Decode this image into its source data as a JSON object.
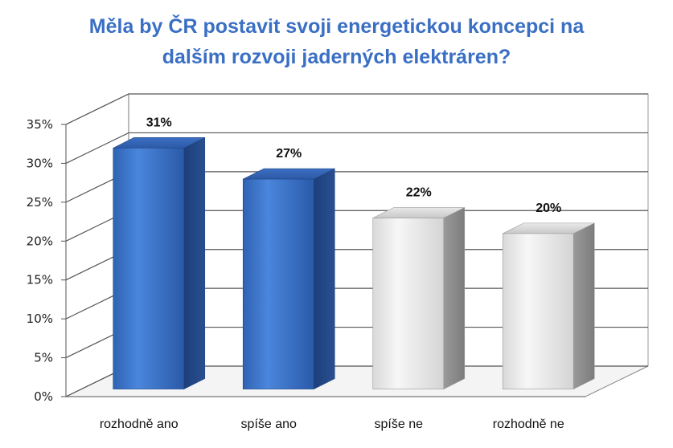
{
  "chart_data": {
    "type": "bar",
    "title_lines": [
      "Měla by ČR postavit svoji energetickou koncepci na",
      "dalším rozvoji jaderných elektráren?"
    ],
    "categories": [
      "rozhodně ano",
      "spíše ano",
      "spíše ne",
      "rozhodně ne"
    ],
    "values": [
      31,
      27,
      22,
      20
    ],
    "data_labels": [
      "31%",
      "27%",
      "22%",
      "20%"
    ],
    "ylim": [
      0,
      35
    ],
    "yticks": [
      "0%",
      "5%",
      "10%",
      "15%",
      "20%",
      "25%",
      "30%",
      "35%"
    ],
    "grid": true,
    "style": "3d",
    "bar_colors": [
      "blue",
      "blue",
      "gray",
      "gray"
    ],
    "colors": {
      "blue": "#3a73c9",
      "gray": "#e6e6e6",
      "title": "#3a6fc4"
    }
  }
}
